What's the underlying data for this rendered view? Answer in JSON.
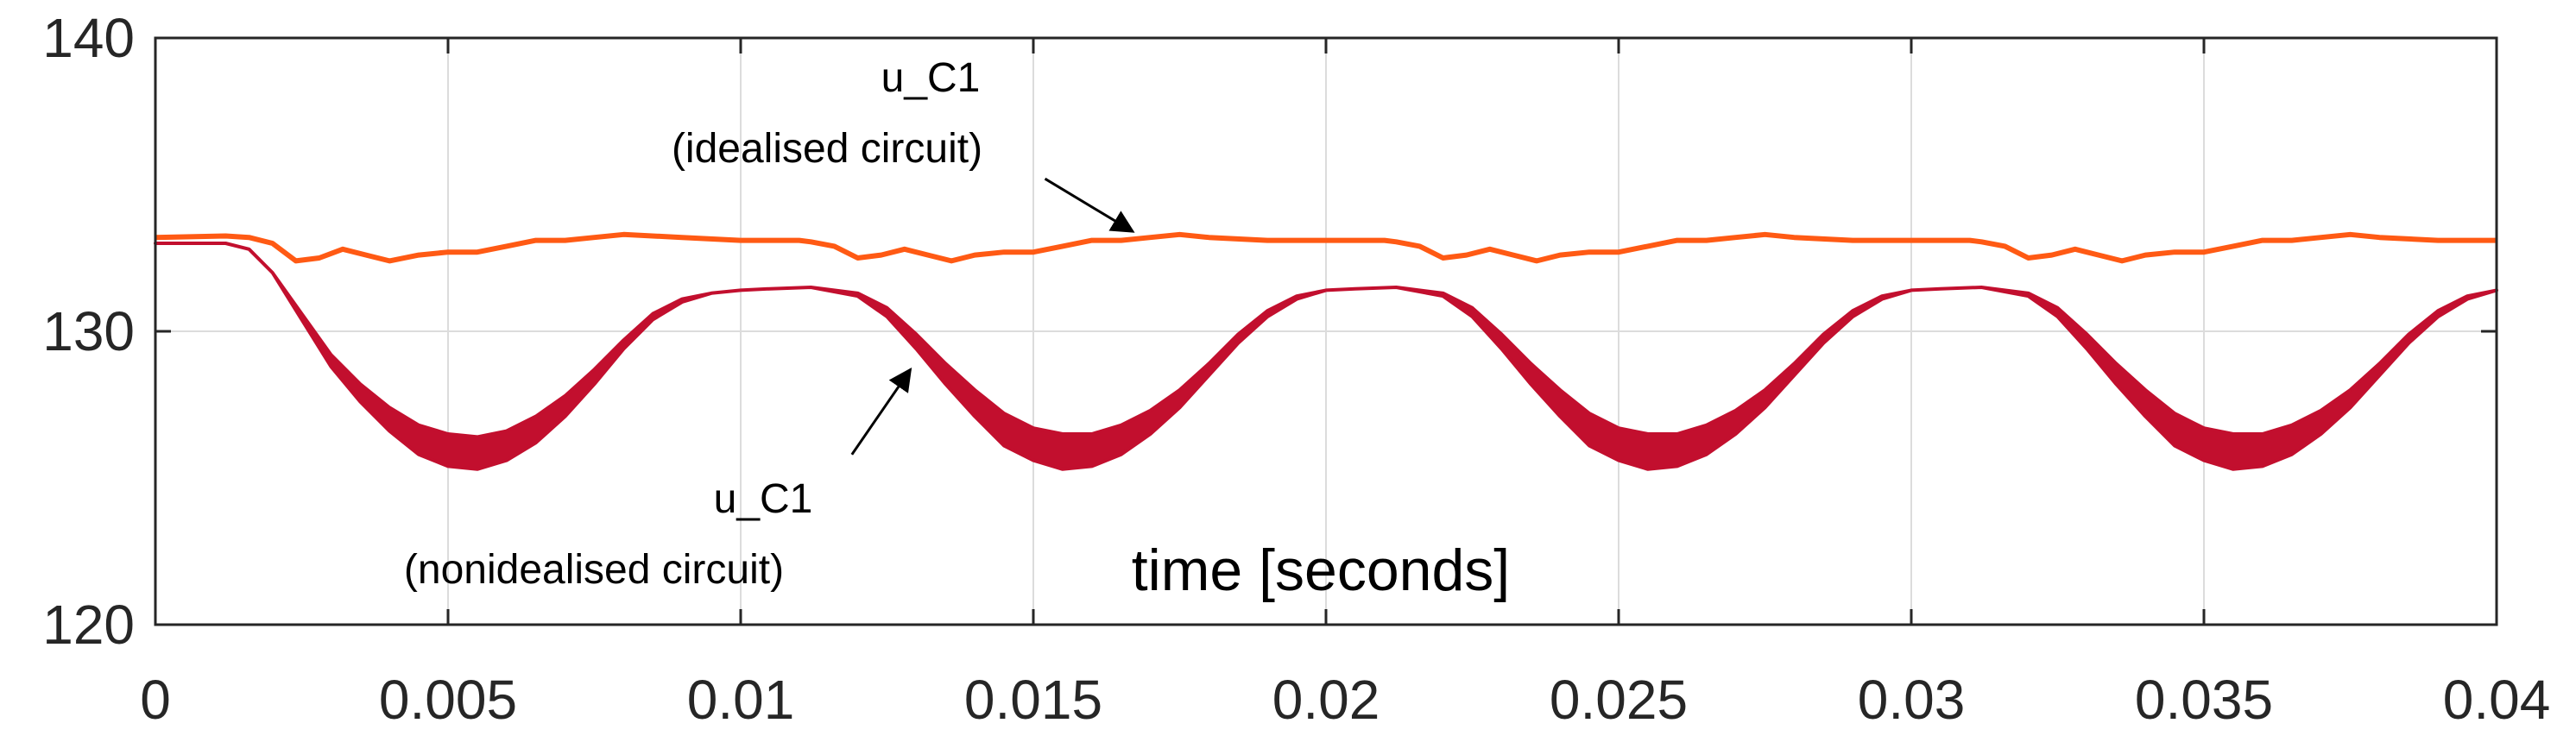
{
  "chart_data": {
    "type": "line",
    "title": "",
    "xlabel": "time [seconds]",
    "ylabel": "",
    "xlim": [
      0,
      0.04
    ],
    "ylim": [
      120,
      140
    ],
    "x_ticks": [
      0,
      0.005,
      0.01,
      0.015,
      0.02,
      0.025,
      0.03,
      0.035,
      0.04
    ],
    "x_tick_labels": [
      "0",
      "0.005",
      "0.01",
      "0.015",
      "0.02",
      "0.025",
      "0.03",
      "0.035",
      "0.04"
    ],
    "y_ticks": [
      120,
      130,
      140
    ],
    "y_tick_labels": [
      "120",
      "130",
      "140"
    ],
    "grid": true,
    "legend": "none",
    "series": [
      {
        "color": "#ff5a14",
        "x": [
          0,
          0.0012,
          0.0016,
          0.002,
          0.0024,
          0.0028,
          0.0032,
          0.0036,
          0.004,
          0.0045,
          0.005,
          0.0055,
          0.006,
          0.0065,
          0.007,
          0.0075,
          0.008,
          0.009,
          0.01,
          0.011,
          0.0112,
          0.0116,
          0.012,
          0.0124,
          0.0128,
          0.0132,
          0.0136,
          0.014,
          0.0145,
          0.015,
          0.0155,
          0.016,
          0.0165,
          0.017,
          0.0175,
          0.018,
          0.019,
          0.02,
          0.021,
          0.0212,
          0.0216,
          0.022,
          0.0224,
          0.0228,
          0.0232,
          0.0236,
          0.024,
          0.0245,
          0.025,
          0.0255,
          0.026,
          0.0265,
          0.027,
          0.0275,
          0.028,
          0.029,
          0.03,
          0.031,
          0.0312,
          0.0316,
          0.032,
          0.0324,
          0.0328,
          0.0332,
          0.0336,
          0.034,
          0.0345,
          0.035,
          0.0355,
          0.036,
          0.0365,
          0.037,
          0.0375,
          0.038,
          0.039,
          0.04
        ],
        "y": [
          133.2,
          133.25,
          133.2,
          133.0,
          132.4,
          132.5,
          132.8,
          132.6,
          132.4,
          132.6,
          132.7,
          132.7,
          132.9,
          133.1,
          133.1,
          133.2,
          133.3,
          133.2,
          133.1,
          133.1,
          133.05,
          132.9,
          132.5,
          132.6,
          132.8,
          132.6,
          132.4,
          132.6,
          132.7,
          132.7,
          132.9,
          133.1,
          133.1,
          133.2,
          133.3,
          133.2,
          133.1,
          133.1,
          133.1,
          133.05,
          132.9,
          132.5,
          132.6,
          132.8,
          132.6,
          132.4,
          132.6,
          132.7,
          132.7,
          132.9,
          133.1,
          133.1,
          133.2,
          133.3,
          133.2,
          133.1,
          133.1,
          133.1,
          133.05,
          132.9,
          132.5,
          132.6,
          132.8,
          132.6,
          132.4,
          132.6,
          132.7,
          132.7,
          132.9,
          133.1,
          133.1,
          133.2,
          133.3,
          133.2,
          133.1,
          133.1
        ]
      },
      {
        "color": "#c20f2e",
        "x": [
          0,
          0.0008,
          0.0012,
          0.0016,
          0.002,
          0.0025,
          0.003,
          0.0035,
          0.004,
          0.0045,
          0.005,
          0.0055,
          0.006,
          0.0065,
          0.007,
          0.0075,
          0.008,
          0.0085,
          0.009,
          0.0095,
          0.01,
          0.0105,
          0.0112,
          0.012,
          0.0125,
          0.013,
          0.0135,
          0.014,
          0.0145,
          0.015,
          0.0155,
          0.016,
          0.0165,
          0.017,
          0.0175,
          0.018,
          0.0185,
          0.019,
          0.0195,
          0.02,
          0.0205,
          0.0212,
          0.022,
          0.0225,
          0.023,
          0.0235,
          0.024,
          0.0245,
          0.025,
          0.0255,
          0.026,
          0.0265,
          0.027,
          0.0275,
          0.028,
          0.0285,
          0.029,
          0.0295,
          0.03,
          0.0305,
          0.0312,
          0.032,
          0.0325,
          0.033,
          0.0335,
          0.034,
          0.0345,
          0.035,
          0.0355,
          0.036,
          0.0365,
          0.037,
          0.0375,
          0.038,
          0.0385,
          0.039,
          0.0395,
          0.04
        ],
        "y_upper": [
          133.0,
          133.0,
          133.0,
          132.8,
          132.0,
          130.6,
          129.2,
          128.2,
          127.4,
          126.8,
          126.5,
          126.4,
          126.6,
          127.1,
          127.8,
          128.7,
          129.7,
          130.6,
          131.1,
          131.3,
          131.4,
          131.45,
          131.5,
          131.3,
          130.8,
          129.9,
          128.9,
          128.0,
          127.2,
          126.7,
          126.5,
          126.5,
          126.8,
          127.3,
          128.0,
          128.9,
          129.9,
          130.7,
          131.2,
          131.4,
          131.45,
          131.5,
          131.3,
          130.8,
          129.9,
          128.9,
          128.0,
          127.2,
          126.7,
          126.5,
          126.5,
          126.8,
          127.3,
          128.0,
          128.9,
          129.9,
          130.7,
          131.2,
          131.4,
          131.45,
          131.5,
          131.3,
          130.8,
          129.9,
          128.9,
          128.0,
          127.2,
          126.7,
          126.5,
          126.5,
          126.8,
          127.3,
          128.0,
          128.9,
          129.9,
          130.7,
          131.2,
          131.4
        ],
        "y_lower": [
          133.0,
          133.0,
          133.0,
          132.8,
          132.0,
          130.4,
          128.8,
          127.6,
          126.6,
          125.8,
          125.4,
          125.3,
          125.6,
          126.2,
          127.1,
          128.2,
          129.4,
          130.4,
          131.0,
          131.3,
          131.4,
          131.45,
          131.5,
          131.2,
          130.5,
          129.4,
          128.2,
          127.1,
          126.1,
          125.6,
          125.3,
          125.4,
          125.8,
          126.5,
          127.4,
          128.5,
          129.6,
          130.5,
          131.1,
          131.4,
          131.45,
          131.5,
          131.2,
          130.5,
          129.4,
          128.2,
          127.1,
          126.1,
          125.6,
          125.3,
          125.4,
          125.8,
          126.5,
          127.4,
          128.5,
          129.6,
          130.5,
          131.1,
          131.4,
          131.45,
          131.5,
          131.2,
          130.5,
          129.4,
          128.2,
          127.1,
          126.1,
          125.6,
          125.3,
          125.4,
          125.8,
          126.5,
          127.4,
          128.5,
          129.6,
          130.5,
          131.1,
          131.4
        ]
      }
    ],
    "annotations": [
      {
        "line1": "u_C1",
        "line2": "(idealised circuit)",
        "arrow_from": [
          0.0152,
          135.2
        ],
        "arrow_to": [
          0.0167,
          133.4
        ]
      },
      {
        "line1": "u_C1",
        "line2": "(nonidealised circuit)",
        "arrow_from": [
          0.0119,
          125.8
        ],
        "arrow_to": [
          0.0129,
          128.7
        ]
      }
    ]
  }
}
